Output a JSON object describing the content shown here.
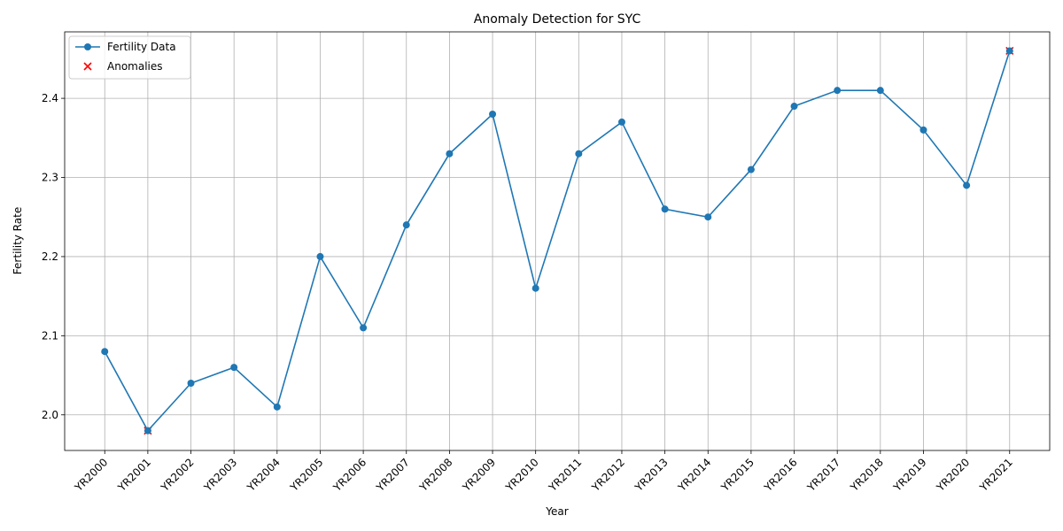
{
  "chart_data": {
    "type": "line",
    "title": "Anomaly Detection for SYC",
    "xlabel": "Year",
    "ylabel": "Fertility Rate",
    "categories": [
      "YR2000",
      "YR2001",
      "YR2002",
      "YR2003",
      "YR2004",
      "YR2005",
      "YR2006",
      "YR2007",
      "YR2008",
      "YR2009",
      "YR2010",
      "YR2011",
      "YR2012",
      "YR2013",
      "YR2014",
      "YR2015",
      "YR2016",
      "YR2017",
      "YR2018",
      "YR2019",
      "YR2020",
      "YR2021"
    ],
    "series": [
      {
        "name": "Fertility Data",
        "color": "#1f77b4",
        "marker": "o",
        "values": [
          2.08,
          1.98,
          2.04,
          2.06,
          2.01,
          2.2,
          2.11,
          2.24,
          2.33,
          2.38,
          2.16,
          2.33,
          2.37,
          2.26,
          2.25,
          2.31,
          2.39,
          2.41,
          2.41,
          2.36,
          2.29,
          2.46
        ]
      },
      {
        "name": "Anomalies",
        "color": "#ff0000",
        "marker": "x",
        "values": [
          null,
          1.98,
          null,
          null,
          null,
          null,
          null,
          null,
          null,
          null,
          null,
          null,
          null,
          null,
          null,
          null,
          null,
          null,
          null,
          null,
          null,
          2.46
        ]
      }
    ],
    "ylim": [
      1.955,
      2.484
    ],
    "yticks": [
      {
        "value": 2.0,
        "label": "2.0"
      },
      2.1,
      2.2,
      2.3,
      2.4
    ],
    "grid": true,
    "legend": "upper left"
  }
}
